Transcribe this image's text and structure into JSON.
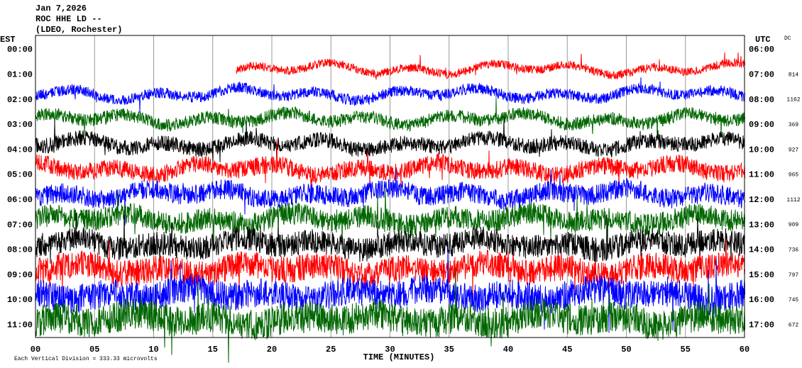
{
  "header": {
    "date": "Jan 7,2026",
    "station": "ROC HHE LD --",
    "network": "(LDEO, Rochester)"
  },
  "left_axis": {
    "title": "EST",
    "labels": [
      "00:00",
      "01:00",
      "02:00",
      "03:00",
      "04:00",
      "05:00",
      "06:00",
      "07:00",
      "08:00",
      "09:00",
      "10:00",
      "11:00"
    ]
  },
  "right_axis": {
    "title": "UTC",
    "labels": [
      "06:00",
      "07:00",
      "08:00",
      "09:00",
      "10:00",
      "11:00",
      "12:00",
      "13:00",
      "14:00",
      "15:00",
      "16:00",
      "17:00"
    ]
  },
  "dc": {
    "title": "DC",
    "values": [
      814,
      1162,
      369,
      927,
      965,
      1112,
      909,
      736,
      797,
      745,
      672
    ]
  },
  "x_axis": {
    "title": "TIME (MINUTES)",
    "labels": [
      "00",
      "05",
      "10",
      "15",
      "20",
      "25",
      "30",
      "35",
      "40",
      "45",
      "50",
      "55",
      "60"
    ]
  },
  "footer": "Each Vertical Division = 333.33 microvolts"
}
